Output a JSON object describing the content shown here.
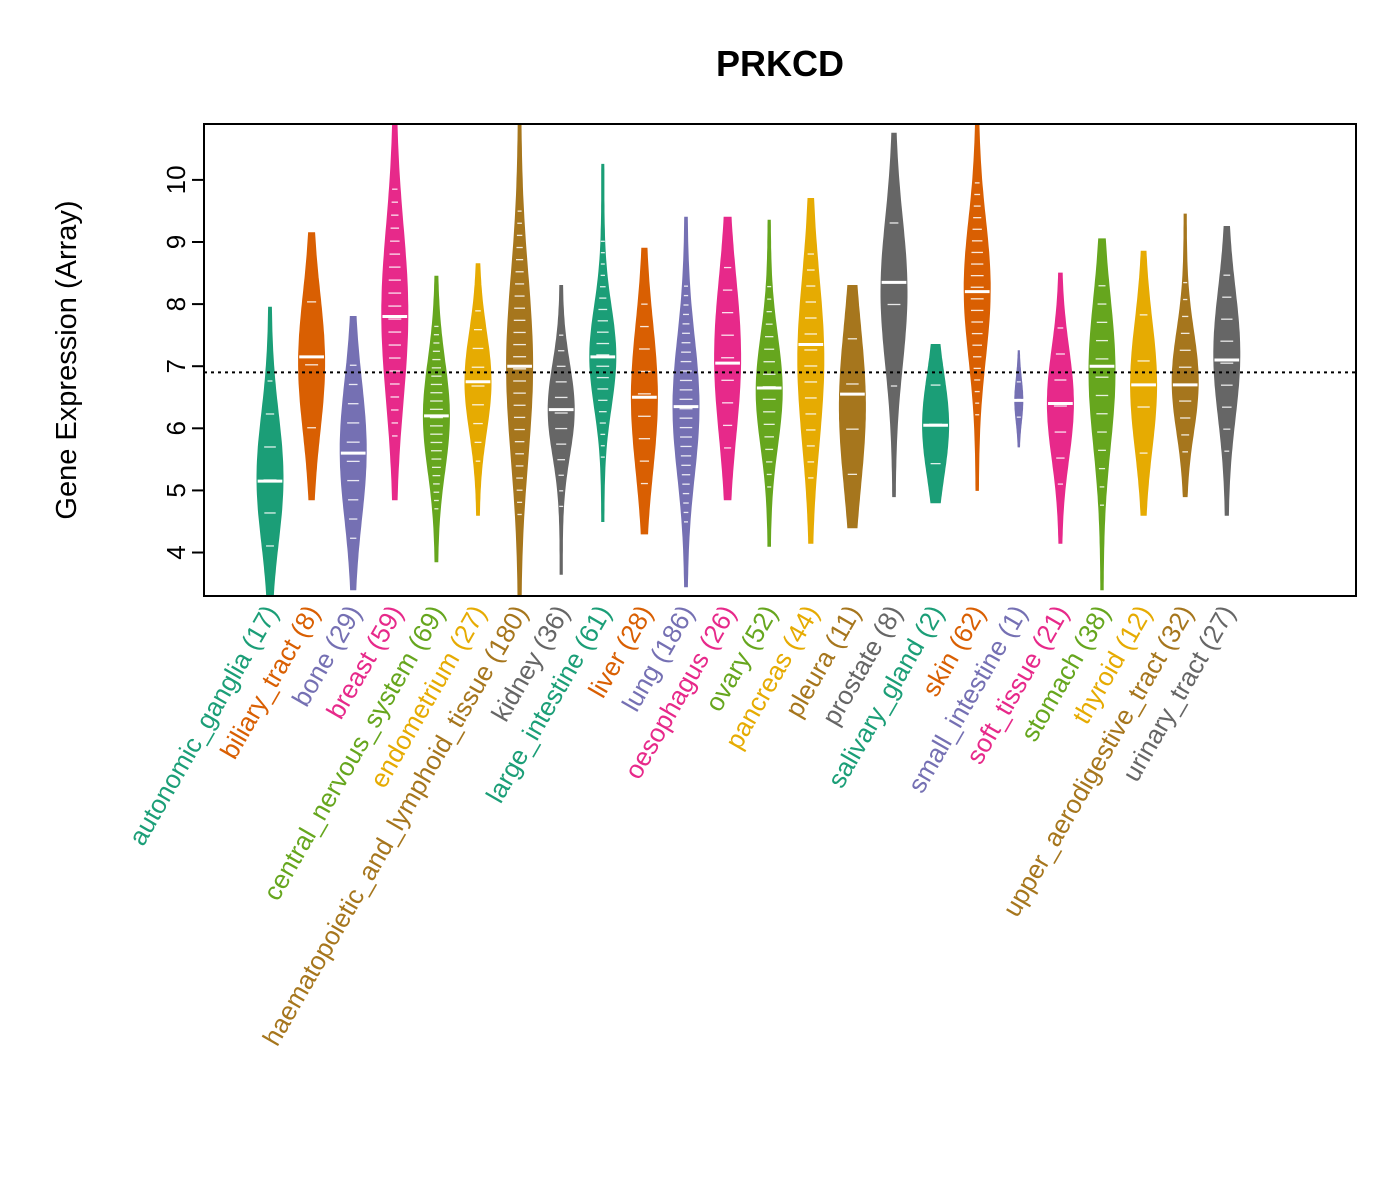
{
  "chart_data": {
    "type": "violin",
    "title": "PRKCD",
    "xlabel": "",
    "ylabel": "Gene Expression (Array)",
    "ylim": [
      3.3,
      10.9
    ],
    "yticks": [
      4,
      5,
      6,
      7,
      8,
      9,
      10
    ],
    "reference_line": 6.9,
    "categories": [
      {
        "label": "autonomic_ganglia",
        "count": "(17)",
        "color": "#1B9E77",
        "min": 3.3,
        "max": 7.95,
        "median": 5.15,
        "q1": 4.5,
        "q3": 5.9
      },
      {
        "label": "biliary_tract",
        "count": "(8)",
        "color": "#D95F02",
        "min": 4.85,
        "max": 9.15,
        "median": 7.15,
        "q1": 6.3,
        "q3": 7.8
      },
      {
        "label": "bone",
        "count": "(29)",
        "color": "#7570B3",
        "min": 3.4,
        "max": 7.8,
        "median": 5.6,
        "q1": 4.9,
        "q3": 6.4
      },
      {
        "label": "breast",
        "count": "(59)",
        "color": "#E7298A",
        "min": 4.85,
        "max": 10.9,
        "median": 7.8,
        "q1": 6.9,
        "q3": 8.8
      },
      {
        "label": "central_nervous_system",
        "count": "(69)",
        "color": "#66A61E",
        "min": 3.85,
        "max": 8.45,
        "median": 6.2,
        "q1": 5.6,
        "q3": 6.8
      },
      {
        "label": "endometrium",
        "count": "(27)",
        "color": "#E6AB02",
        "min": 4.6,
        "max": 8.65,
        "median": 6.75,
        "q1": 6.2,
        "q3": 7.3
      },
      {
        "label": "haematopoietic_and_lymphoid_tissue",
        "count": "(180)",
        "color": "#A6761D",
        "min": 3.3,
        "max": 10.9,
        "median": 7.0,
        "q1": 6.0,
        "q3": 8.0
      },
      {
        "label": "kidney",
        "count": "(36)",
        "color": "#666666",
        "min": 3.65,
        "max": 8.3,
        "median": 6.3,
        "q1": 5.8,
        "q3": 6.8
      },
      {
        "label": "large_intestine",
        "count": "(61)",
        "color": "#1B9E77",
        "min": 4.5,
        "max": 10.25,
        "median": 7.15,
        "q1": 6.6,
        "q3": 7.7
      },
      {
        "label": "liver",
        "count": "(28)",
        "color": "#D95F02",
        "min": 4.3,
        "max": 8.9,
        "median": 6.5,
        "q1": 5.7,
        "q3": 7.3
      },
      {
        "label": "lung",
        "count": "(186)",
        "color": "#7570B3",
        "min": 3.45,
        "max": 9.4,
        "median": 6.35,
        "q1": 5.6,
        "q3": 7.1
      },
      {
        "label": "oesophagus",
        "count": "(26)",
        "color": "#E7298A",
        "min": 4.85,
        "max": 9.4,
        "median": 7.05,
        "q1": 6.3,
        "q3": 8.0
      },
      {
        "label": "ovary",
        "count": "(52)",
        "color": "#66A61E",
        "min": 4.1,
        "max": 9.35,
        "median": 6.65,
        "q1": 6.0,
        "q3": 7.2
      },
      {
        "label": "pancreas",
        "count": "(44)",
        "color": "#E6AB02",
        "min": 4.15,
        "max": 9.7,
        "median": 7.35,
        "q1": 6.2,
        "q3": 8.0
      },
      {
        "label": "pleura",
        "count": "(11)",
        "color": "#A6761D",
        "min": 4.4,
        "max": 8.3,
        "median": 6.55,
        "q1": 5.5,
        "q3": 7.2
      },
      {
        "label": "prostate",
        "count": "(8)",
        "color": "#666666",
        "min": 4.9,
        "max": 10.75,
        "median": 8.35,
        "q1": 7.4,
        "q3": 9.0
      },
      {
        "label": "salivary_gland",
        "count": "(2)",
        "color": "#1B9E77",
        "min": 4.8,
        "max": 7.35,
        "median": 6.05,
        "q1": 5.5,
        "q3": 6.6
      },
      {
        "label": "skin",
        "count": "(62)",
        "color": "#D95F02",
        "min": 5.0,
        "max": 10.9,
        "median": 8.2,
        "q1": 7.5,
        "q3": 9.0
      },
      {
        "label": "small_intestine",
        "count": "(1)",
        "color": "#7570B3",
        "min": 5.7,
        "max": 7.25,
        "median": 6.45,
        "q1": 6.45,
        "q3": 6.45
      },
      {
        "label": "soft_tissue",
        "count": "(21)",
        "color": "#E7298A",
        "min": 4.15,
        "max": 8.5,
        "median": 6.4,
        "q1": 5.8,
        "q3": 7.0
      },
      {
        "label": "stomach",
        "count": "(38)",
        "color": "#66A61E",
        "min": 3.4,
        "max": 9.05,
        "median": 7.0,
        "q1": 6.1,
        "q3": 7.7
      },
      {
        "label": "thyroid",
        "count": "(12)",
        "color": "#E6AB02",
        "min": 4.6,
        "max": 8.85,
        "median": 6.7,
        "q1": 6.0,
        "q3": 7.4
      },
      {
        "label": "upper_aerodigestive_tract",
        "count": "(32)",
        "color": "#A6761D",
        "min": 4.9,
        "max": 9.45,
        "median": 6.7,
        "q1": 6.2,
        "q3": 7.3
      },
      {
        "label": "urinary_tract",
        "count": "(27)",
        "color": "#666666",
        "min": 4.6,
        "max": 9.25,
        "median": 7.1,
        "q1": 6.5,
        "q3": 7.9
      }
    ]
  }
}
